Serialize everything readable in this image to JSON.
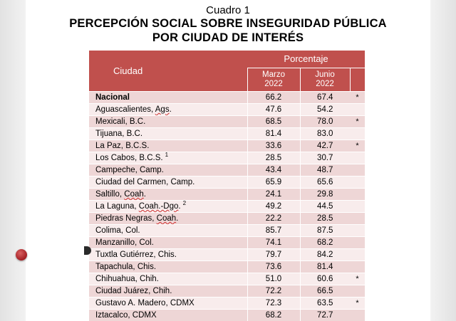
{
  "caption": {
    "number": "Cuadro 1",
    "title_line1": "PERCEPCIÓN SOCIAL SOBRE INSEGURIDAD PÚBLICA",
    "title_line2": "POR CIUDAD DE INTERÉS"
  },
  "table": {
    "col_city": "Ciudad",
    "col_group": "Porcentaje",
    "col_march_month": "Marzo",
    "col_march_year": "2022",
    "col_june_month": "Junio",
    "col_june_year": "2022",
    "rows": [
      {
        "city": "Nacional",
        "march": "66.2",
        "june": "67.4",
        "mark": "*"
      },
      {
        "city": "Aguascalientes, Ags.",
        "march": "47.6",
        "june": "54.2",
        "mark": ""
      },
      {
        "city": "Mexicali, B.C.",
        "march": "68.5",
        "june": "78.0",
        "mark": "*"
      },
      {
        "city": "Tijuana, B.C.",
        "march": "81.4",
        "june": "83.0",
        "mark": ""
      },
      {
        "city": "La Paz, B.C.S.",
        "march": "33.6",
        "june": "42.7",
        "mark": "*"
      },
      {
        "city": "Los Cabos, B.C.S.",
        "note": "1",
        "march": "28.5",
        "june": "30.7",
        "mark": ""
      },
      {
        "city": "Campeche, Camp.",
        "march": "43.4",
        "june": "48.7",
        "mark": ""
      },
      {
        "city": "Ciudad del Carmen, Camp.",
        "march": "65.9",
        "june": "65.6",
        "mark": ""
      },
      {
        "city": "Saltillo, Coah.",
        "march": "24.1",
        "june": "29.8",
        "mark": ""
      },
      {
        "city": "La Laguna, Coah.-Dgo.",
        "note": "2",
        "march": "49.2",
        "june": "44.5",
        "mark": ""
      },
      {
        "city": "Piedras Negras, Coah.",
        "march": "22.2",
        "june": "28.5",
        "mark": ""
      },
      {
        "city": "Colima, Col.",
        "march": "85.7",
        "june": "87.5",
        "mark": ""
      },
      {
        "city": "Manzanillo, Col.",
        "march": "74.1",
        "june": "68.2",
        "mark": ""
      },
      {
        "city": "Tuxtla Gutiérrez, Chis.",
        "march": "79.7",
        "june": "84.2",
        "mark": ""
      },
      {
        "city": "Tapachula, Chis.",
        "march": "73.6",
        "june": "81.4",
        "mark": ""
      },
      {
        "city": "Chihuahua, Chih.",
        "march": "51.0",
        "june": "60.6",
        "mark": "*"
      },
      {
        "city": "Ciudad Juárez, Chih.",
        "march": "72.2",
        "june": "66.5",
        "mark": ""
      },
      {
        "city": "Gustavo A. Madero, CDMX",
        "march": "72.3",
        "june": "63.5",
        "mark": "*"
      },
      {
        "city": "Iztacalco, CDMX",
        "march": "68.2",
        "june": "72.7",
        "mark": ""
      }
    ]
  }
}
